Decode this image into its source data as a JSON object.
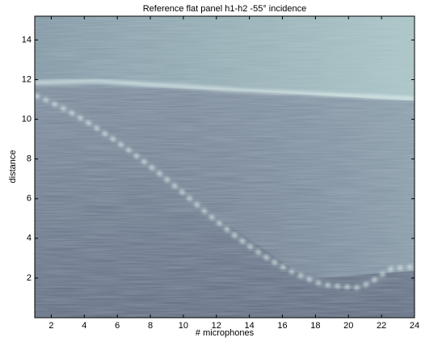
{
  "chart_data": {
    "type": "image",
    "title": "Reference flat panel h1-h2 -55° incidence",
    "xlabel": "# microphones",
    "ylabel": "distance",
    "xlim": [
      1,
      24
    ],
    "xticks": [
      2,
      4,
      6,
      8,
      10,
      12,
      14,
      16,
      18,
      20,
      22,
      24
    ],
    "ylim": [
      0,
      15.2
    ],
    "yticks": [
      2,
      4,
      6,
      8,
      10,
      12,
      14
    ]
  }
}
